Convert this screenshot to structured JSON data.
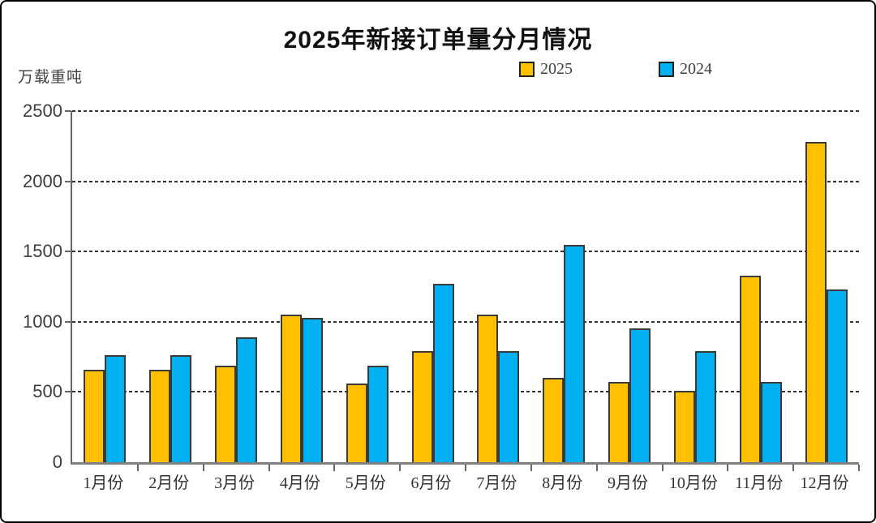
{
  "chart_data": {
    "type": "bar",
    "title": "2025年新接订单量分月情况",
    "unit_label": "万载重吨",
    "categories": [
      "1月份",
      "2月份",
      "3月份",
      "4月份",
      "5月份",
      "6月份",
      "7月份",
      "8月份",
      "9月份",
      "10月份",
      "11月份",
      "12月份"
    ],
    "series": [
      {
        "name": "2025",
        "color": "#FFC000",
        "values": [
          660,
          660,
          690,
          1050,
          560,
          790,
          1050,
          600,
          570,
          510,
          1330,
          2280
        ]
      },
      {
        "name": "2024",
        "color": "#00B0F0",
        "values": [
          760,
          760,
          890,
          1030,
          690,
          1270,
          790,
          1550,
          950,
          790,
          570,
          1230
        ]
      }
    ],
    "ylim": [
      0,
      2500
    ],
    "yticks": [
      0,
      500,
      1000,
      1500,
      2000,
      2500
    ],
    "grid": "horizontal-dashed",
    "legend_position": "top-right-of-center",
    "bar_border_color": "#3a3a3a",
    "axis_color": "#808080",
    "text_color": "#404040"
  }
}
